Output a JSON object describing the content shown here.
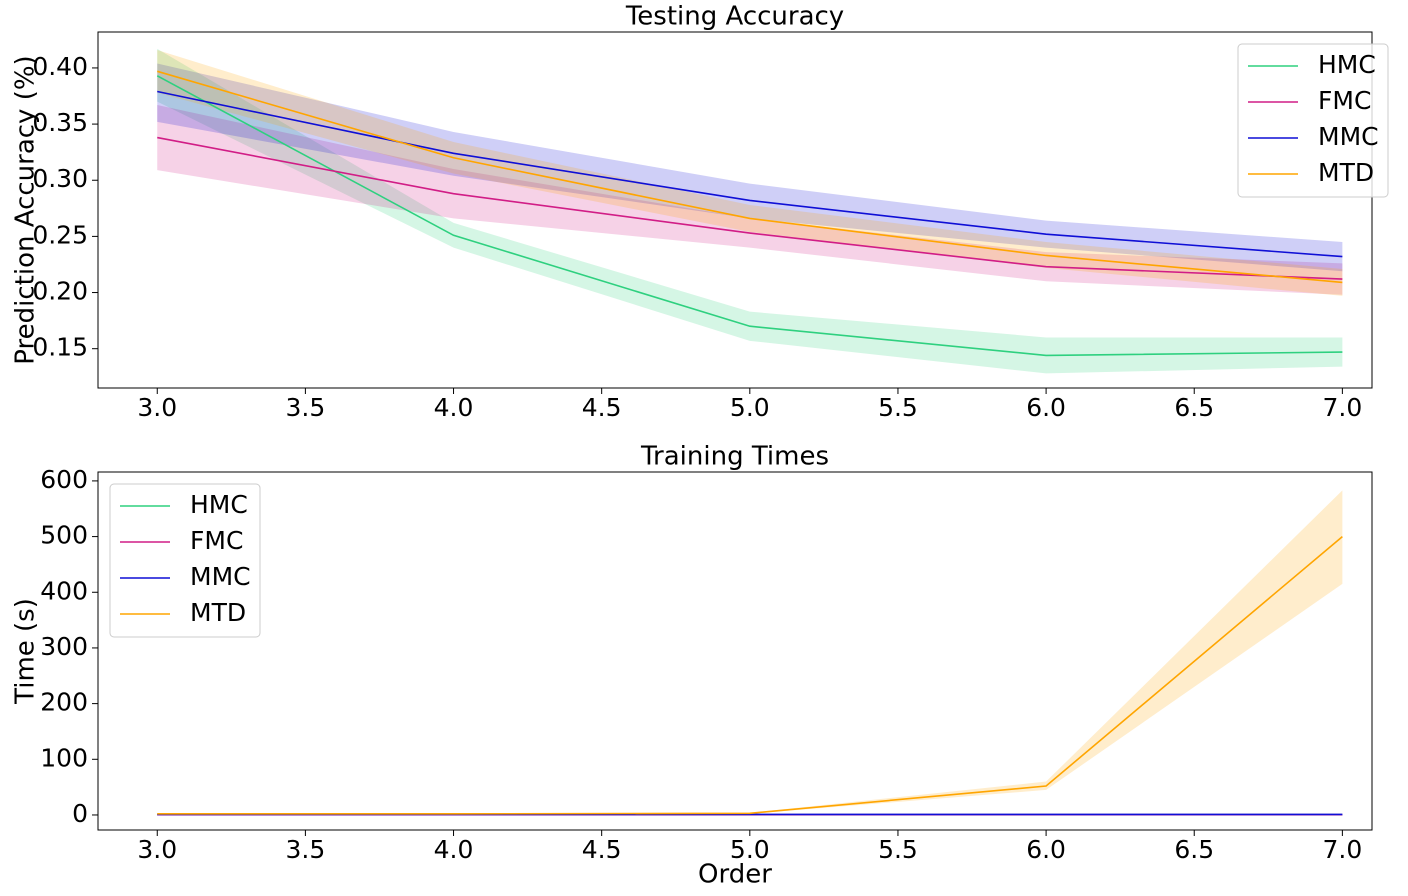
{
  "chart_data": [
    {
      "type": "line",
      "title": "Testing Accuracy",
      "ylabel": "Prediction Accuracy (%)",
      "x": [
        3,
        4,
        5,
        6,
        7
      ],
      "xlim": [
        2.8,
        7.1
      ],
      "ylim": [
        0.115,
        0.432
      ],
      "xticks": [
        {
          "value": 3,
          "label": "3.0"
        },
        {
          "value": 3.5,
          "label": "3.5"
        },
        {
          "value": 4,
          "label": "4.0"
        },
        {
          "value": 4.5,
          "label": "4.5"
        },
        {
          "value": 5,
          "label": "5.0"
        },
        {
          "value": 5.5,
          "label": "5.5"
        },
        {
          "value": 6,
          "label": "6.0"
        },
        {
          "value": 6.5,
          "label": "6.5"
        },
        {
          "value": 7,
          "label": "7.0"
        }
      ],
      "yticks": [
        0.15,
        {
          "value": 0.2,
          "label": "0.20"
        },
        0.25,
        {
          "value": 0.3,
          "label": "0.30"
        },
        0.35,
        {
          "value": 0.4,
          "label": "0.40"
        }
      ],
      "legend": "upper right",
      "series": [
        {
          "name": "HMC",
          "color": "#2ed07f",
          "values": [
            0.393,
            0.251,
            0.17,
            0.144,
            0.147
          ],
          "lower": [
            0.37,
            0.24,
            0.157,
            0.128,
            0.134
          ],
          "upper": [
            0.417,
            0.262,
            0.183,
            0.16,
            0.16
          ]
        },
        {
          "name": "FMC",
          "color": "#d11d86",
          "values": [
            0.338,
            0.288,
            0.253,
            0.223,
            0.212
          ],
          "lower": [
            0.309,
            0.266,
            0.24,
            0.21,
            0.198
          ],
          "upper": [
            0.367,
            0.31,
            0.266,
            0.236,
            0.226
          ]
        },
        {
          "name": "MMC",
          "color": "#0f0fd6",
          "values": [
            0.379,
            0.324,
            0.282,
            0.252,
            0.232
          ],
          "lower": [
            0.352,
            0.304,
            0.266,
            0.24,
            0.219
          ],
          "upper": [
            0.404,
            0.343,
            0.297,
            0.264,
            0.245
          ]
        },
        {
          "name": "MTD",
          "color": "#ffa500",
          "values": [
            0.397,
            0.32,
            0.266,
            0.233,
            0.209
          ],
          "lower": [
            0.378,
            0.306,
            0.254,
            0.222,
            0.197
          ],
          "upper": [
            0.416,
            0.334,
            0.278,
            0.245,
            0.221
          ]
        }
      ]
    },
    {
      "type": "line",
      "title": "Training Times",
      "xlabel": "Order",
      "ylabel": "Time (s)",
      "x": [
        3,
        4,
        5,
        6,
        7
      ],
      "xlim": [
        2.8,
        7.1
      ],
      "ylim": [
        -27,
        616
      ],
      "xticks": [
        {
          "value": 3,
          "label": "3.0"
        },
        {
          "value": 3.5,
          "label": "3.5"
        },
        {
          "value": 4,
          "label": "4.0"
        },
        {
          "value": 4.5,
          "label": "4.5"
        },
        {
          "value": 5,
          "label": "5.0"
        },
        {
          "value": 5.5,
          "label": "5.5"
        },
        {
          "value": 6,
          "label": "6.0"
        },
        {
          "value": 6.5,
          "label": "6.5"
        },
        {
          "value": 7,
          "label": "7.0"
        }
      ],
      "yticks": [
        0,
        100,
        200,
        300,
        400,
        500,
        600
      ],
      "legend": "upper left",
      "series": [
        {
          "name": "HMC",
          "color": "#2ed07f",
          "values": [
            0.5,
            0.5,
            0.5,
            0.5,
            0.5
          ]
        },
        {
          "name": "FMC",
          "color": "#d11d86",
          "values": [
            0.5,
            0.5,
            0.5,
            0.5,
            0.5
          ]
        },
        {
          "name": "MMC",
          "color": "#0f0fd6",
          "values": [
            1,
            1,
            1,
            1,
            1
          ]
        },
        {
          "name": "MTD",
          "color": "#ffa500",
          "values": [
            2,
            2,
            3,
            52,
            500
          ],
          "lower": [
            1,
            1,
            2,
            45,
            415
          ],
          "upper": [
            3,
            3,
            4,
            60,
            583
          ]
        }
      ]
    }
  ]
}
